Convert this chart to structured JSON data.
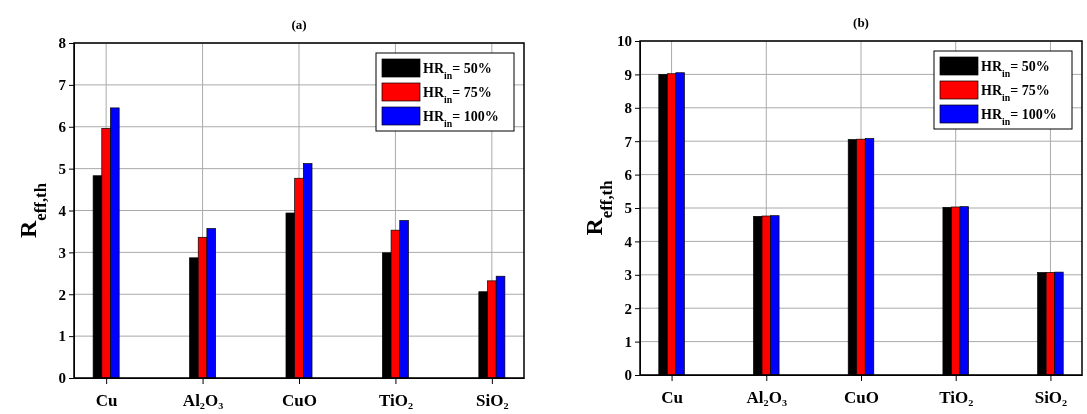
{
  "chart_data": [
    {
      "type": "bar",
      "title": "(a)",
      "ylabel": "R$_{eff,th}$",
      "categories": [
        "Cu",
        "Al₂O₃",
        "CuO",
        "TiO₂",
        "SiO₂"
      ],
      "ylim": [
        0,
        8
      ],
      "yticks": [
        0,
        1,
        2,
        3,
        4,
        5,
        6,
        7,
        8
      ],
      "grid": true,
      "legend": "top right",
      "series": [
        {
          "name": "HR$_{in}$= 50%",
          "color": "#000000",
          "values": [
            4.83,
            2.87,
            3.94,
            2.99,
            2.06
          ]
        },
        {
          "name": "HR$_{in}$= 75%",
          "color": "#ff0000",
          "values": [
            5.96,
            3.36,
            4.77,
            3.53,
            2.32
          ]
        },
        {
          "name": "HR$_{in}$= 100%",
          "color": "#0000ff",
          "values": [
            6.45,
            3.57,
            5.12,
            3.76,
            2.43
          ]
        }
      ]
    },
    {
      "type": "bar",
      "title": "(b)",
      "ylabel": "R$_{eff,th}$",
      "categories": [
        "Cu",
        "Al₂O₃",
        "CuO",
        "TiO₂",
        "SiO₂"
      ],
      "ylim": [
        0,
        10
      ],
      "yticks": [
        0,
        1,
        2,
        3,
        4,
        5,
        6,
        7,
        8,
        9,
        10
      ],
      "grid": true,
      "legend": "top right",
      "series": [
        {
          "name": "HR$_{in}$= 50%",
          "color": "#000000",
          "values": [
            9.0,
            4.75,
            7.05,
            5.02,
            3.07
          ]
        },
        {
          "name": "HR$_{in}$= 75%",
          "color": "#ff0000",
          "values": [
            9.02,
            4.76,
            7.06,
            5.03,
            3.07
          ]
        },
        {
          "name": "HR$_{in}$= 100%",
          "color": "#0000ff",
          "values": [
            9.05,
            4.77,
            7.08,
            5.04,
            3.08
          ]
        }
      ]
    }
  ]
}
